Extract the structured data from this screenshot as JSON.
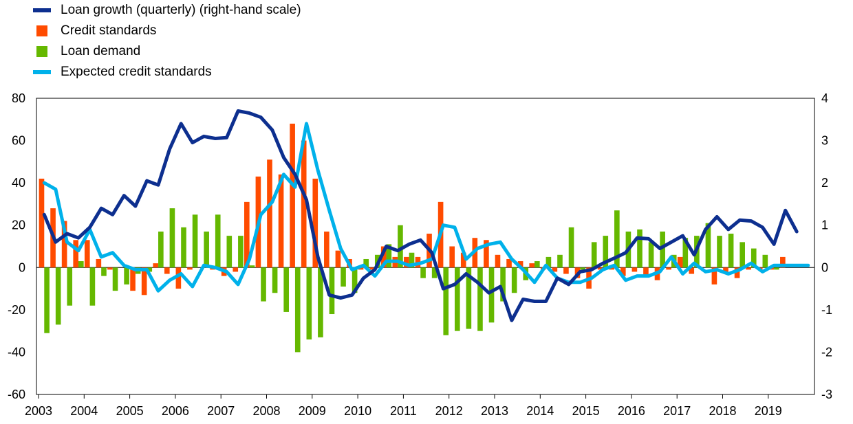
{
  "chart_data": {
    "type": "bar+line",
    "legend": [
      {
        "name": "Loan growth (quarterly) (right-hand scale)",
        "kind": "line",
        "color": "#0d2f8f"
      },
      {
        "name": "Credit standards",
        "kind": "bar",
        "color": "#ff4b00"
      },
      {
        "name": "Loan demand",
        "kind": "bar",
        "color": "#65b800"
      },
      {
        "name": "Expected credit standards",
        "kind": "line",
        "color": "#00b1ea"
      }
    ],
    "left_axis": {
      "min": -60,
      "max": 80,
      "ticks": [
        "80",
        "60",
        "40",
        "20",
        "0",
        "-20",
        "-40",
        "-60"
      ]
    },
    "right_axis": {
      "min": -3,
      "max": 4,
      "ticks": [
        "4",
        "3",
        "2",
        "1",
        "0",
        "-1",
        "-2",
        "-3"
      ]
    },
    "year_labels": [
      "2003",
      "2004",
      "2005",
      "2006",
      "2007",
      "2008",
      "2009",
      "2010",
      "2011",
      "2012",
      "2013",
      "2014",
      "2015",
      "2016",
      "2017",
      "2018",
      "2019"
    ],
    "start_year": 2003,
    "periods": 68,
    "series": {
      "credit_standards": [
        42,
        28,
        22,
        13,
        13,
        4,
        -1,
        0,
        -11,
        -13,
        2,
        -3,
        -10,
        -1,
        0,
        -1,
        -4,
        -2,
        31,
        43,
        51,
        44,
        68,
        60,
        42,
        17,
        8,
        4,
        -1,
        -1,
        10,
        5,
        5,
        5,
        16,
        31,
        10,
        7,
        14,
        13,
        6,
        4,
        3,
        2,
        -1,
        -2,
        -3,
        -5,
        -10,
        -1,
        -1,
        -4,
        -2,
        -4,
        -6,
        -1,
        5,
        -3,
        0,
        -8,
        -3,
        -5,
        -1,
        -1,
        -1,
        5,
        0,
        0
      ],
      "loan_demand": [
        -31,
        -27,
        -18,
        3,
        -18,
        -4,
        -11,
        -8,
        -3,
        -2,
        17,
        28,
        19,
        25,
        17,
        25,
        15,
        15,
        1,
        -16,
        -12,
        -21,
        -40,
        -34,
        -33,
        -22,
        -9,
        -12,
        4,
        6,
        11,
        20,
        7,
        -5,
        -5,
        -32,
        -30,
        -29,
        -30,
        -26,
        -16,
        -12,
        -6,
        3,
        5,
        6,
        19,
        -1,
        12,
        15,
        27,
        17,
        18,
        12,
        17,
        6,
        14,
        15,
        21,
        15,
        16,
        12,
        9,
        6,
        -1,
        0,
        0,
        0
      ],
      "expected_credit_standards": [
        40,
        37,
        12,
        8,
        18,
        5,
        7,
        1,
        -1,
        -1,
        -11,
        -6,
        -3,
        -9,
        1,
        0,
        -2,
        -8,
        4,
        25,
        31,
        44,
        38,
        68,
        46,
        27,
        9,
        -1,
        1,
        -4,
        3,
        3,
        1,
        2,
        4,
        20,
        19,
        4,
        9,
        11,
        12,
        4,
        -1,
        -7,
        1,
        -5,
        -7,
        -7,
        -5,
        -1,
        1,
        -6,
        -4,
        -4,
        -2,
        5,
        -3,
        2,
        -2,
        -1,
        -3,
        -1,
        2,
        -2,
        1,
        1,
        1,
        1
      ],
      "loan_growth": [
        1.25,
        0.6,
        0.8,
        0.7,
        0.95,
        1.4,
        1.25,
        1.7,
        1.45,
        2.05,
        1.95,
        2.8,
        3.4,
        2.95,
        3.1,
        3.05,
        3.07,
        3.7,
        3.65,
        3.55,
        3.25,
        2.6,
        2.2,
        1.6,
        0.25,
        -0.65,
        -0.72,
        -0.65,
        -0.25,
        -0.05,
        0.5,
        0.4,
        0.55,
        0.65,
        0.35,
        -0.5,
        -0.4,
        -0.15,
        -0.35,
        -0.6,
        -0.45,
        -1.25,
        -0.75,
        -0.8,
        -0.8,
        -0.25,
        -0.4,
        -0.1,
        -0.05,
        0.1,
        0.22,
        0.35,
        0.7,
        0.68,
        0.45,
        0.6,
        0.75,
        0.3,
        0.9,
        1.2,
        0.9,
        1.12,
        1.1,
        0.95,
        0.55,
        1.35,
        0.85,
        null
      ]
    }
  }
}
